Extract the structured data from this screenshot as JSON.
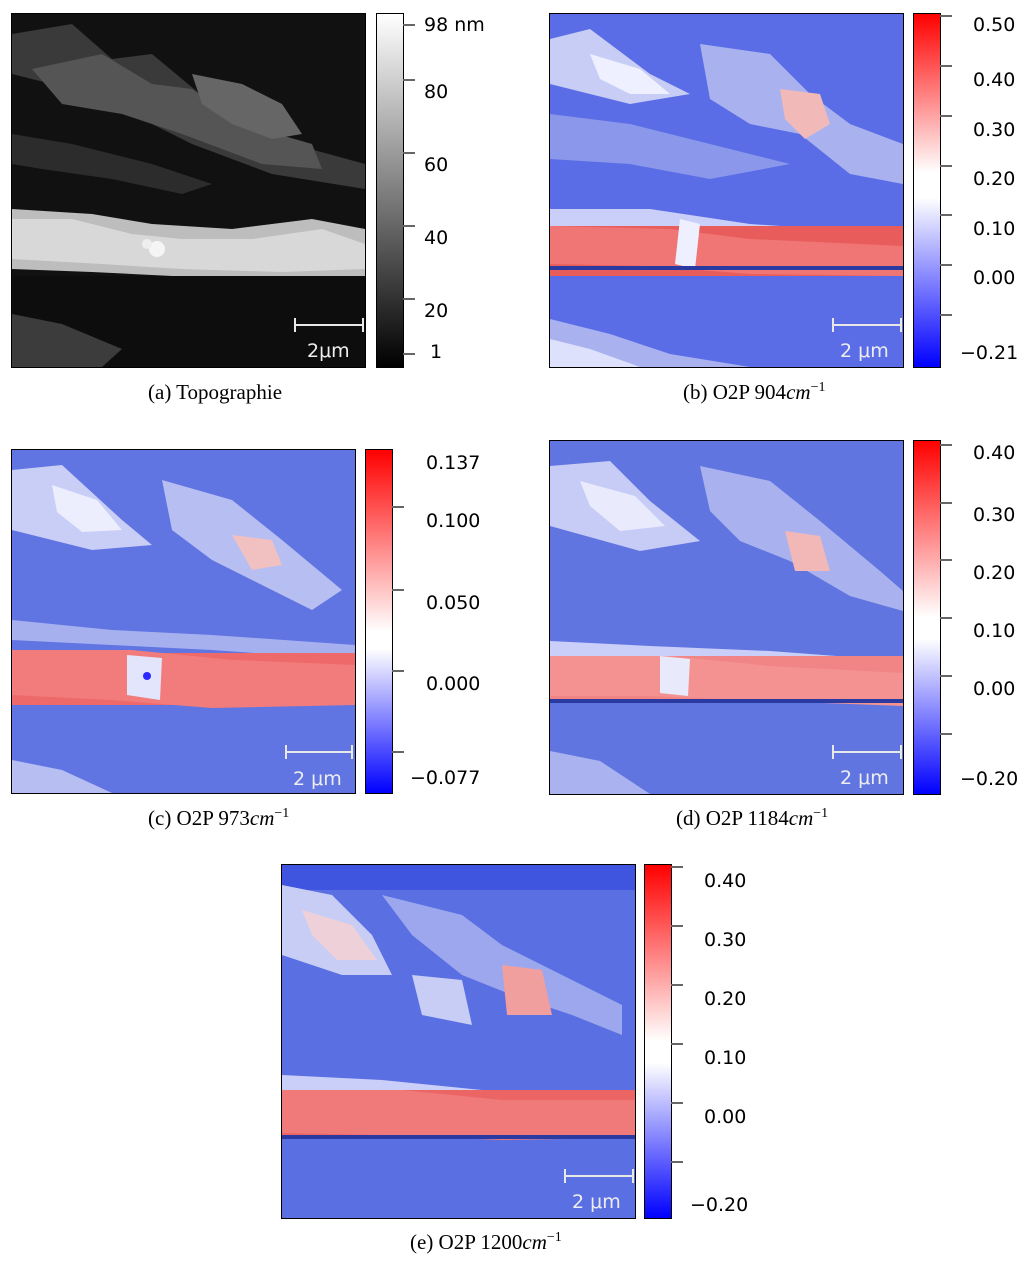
{
  "panels": [
    {
      "id": "a",
      "caption_prefix": "(a) Topographie",
      "caption_unit": "",
      "scale_label": "2μm",
      "colorbar_ticks": [
        "98 nm",
        "80",
        "60",
        "40",
        "20",
        "1"
      ],
      "colormap": "grayscale"
    },
    {
      "id": "b",
      "caption_prefix": "(b) O2P 904",
      "caption_unit": "cm",
      "caption_exp": "−1",
      "scale_label": "2 μm",
      "colorbar_ticks": [
        "0.50",
        "0.40",
        "0.30",
        "0.20",
        "0.10",
        "0.00",
        "−0.21"
      ],
      "colormap": "blue-white-red"
    },
    {
      "id": "c",
      "caption_prefix": "(c) O2P 973",
      "caption_unit": "cm",
      "caption_exp": "−1",
      "scale_label": "2 μm",
      "colorbar_ticks": [
        "0.137",
        "0.100",
        "0.050",
        "0.000",
        "−0.077"
      ],
      "colormap": "blue-white-red"
    },
    {
      "id": "d",
      "caption_prefix": "(d) O2P 1184",
      "caption_unit": "cm",
      "caption_exp": "−1",
      "scale_label": "2 μm",
      "colorbar_ticks": [
        "0.40",
        "0.30",
        "0.20",
        "0.10",
        "0.00",
        "−0.20"
      ],
      "colormap": "blue-white-red"
    },
    {
      "id": "e",
      "caption_prefix": "(e) O2P 1200",
      "caption_unit": "cm",
      "caption_exp": "−1",
      "scale_label": "2 μm",
      "colorbar_ticks": [
        "0.40",
        "0.30",
        "0.20",
        "0.10",
        "0.00",
        "−0.20"
      ],
      "colormap": "blue-white-red"
    }
  ],
  "colors": {
    "blue": "#1a1aff",
    "map_blue": "#5a6fe0",
    "white": "#ffffff",
    "red": "#ff1a1a",
    "band_red": "#e85a5a"
  }
}
